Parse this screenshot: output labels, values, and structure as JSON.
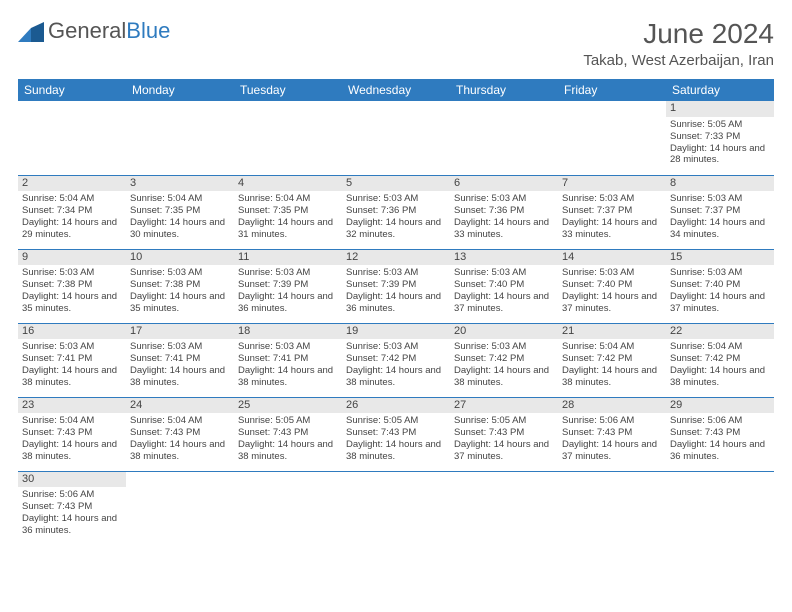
{
  "logo": {
    "text1": "General",
    "text2": "Blue"
  },
  "title": "June 2024",
  "location": "Takab, West Azerbaijan, Iran",
  "colors": {
    "header_bg": "#2f7bbf",
    "header_text": "#ffffff",
    "daynum_bg": "#e8e8e8",
    "border": "#2f7bbf"
  },
  "day_headers": [
    "Sunday",
    "Monday",
    "Tuesday",
    "Wednesday",
    "Thursday",
    "Friday",
    "Saturday"
  ],
  "weeks": [
    [
      null,
      null,
      null,
      null,
      null,
      null,
      {
        "n": "1",
        "sr": "Sunrise: 5:05 AM",
        "ss": "Sunset: 7:33 PM",
        "dl": "Daylight: 14 hours and 28 minutes."
      }
    ],
    [
      {
        "n": "2",
        "sr": "Sunrise: 5:04 AM",
        "ss": "Sunset: 7:34 PM",
        "dl": "Daylight: 14 hours and 29 minutes."
      },
      {
        "n": "3",
        "sr": "Sunrise: 5:04 AM",
        "ss": "Sunset: 7:35 PM",
        "dl": "Daylight: 14 hours and 30 minutes."
      },
      {
        "n": "4",
        "sr": "Sunrise: 5:04 AM",
        "ss": "Sunset: 7:35 PM",
        "dl": "Daylight: 14 hours and 31 minutes."
      },
      {
        "n": "5",
        "sr": "Sunrise: 5:03 AM",
        "ss": "Sunset: 7:36 PM",
        "dl": "Daylight: 14 hours and 32 minutes."
      },
      {
        "n": "6",
        "sr": "Sunrise: 5:03 AM",
        "ss": "Sunset: 7:36 PM",
        "dl": "Daylight: 14 hours and 33 minutes."
      },
      {
        "n": "7",
        "sr": "Sunrise: 5:03 AM",
        "ss": "Sunset: 7:37 PM",
        "dl": "Daylight: 14 hours and 33 minutes."
      },
      {
        "n": "8",
        "sr": "Sunrise: 5:03 AM",
        "ss": "Sunset: 7:37 PM",
        "dl": "Daylight: 14 hours and 34 minutes."
      }
    ],
    [
      {
        "n": "9",
        "sr": "Sunrise: 5:03 AM",
        "ss": "Sunset: 7:38 PM",
        "dl": "Daylight: 14 hours and 35 minutes."
      },
      {
        "n": "10",
        "sr": "Sunrise: 5:03 AM",
        "ss": "Sunset: 7:38 PM",
        "dl": "Daylight: 14 hours and 35 minutes."
      },
      {
        "n": "11",
        "sr": "Sunrise: 5:03 AM",
        "ss": "Sunset: 7:39 PM",
        "dl": "Daylight: 14 hours and 36 minutes."
      },
      {
        "n": "12",
        "sr": "Sunrise: 5:03 AM",
        "ss": "Sunset: 7:39 PM",
        "dl": "Daylight: 14 hours and 36 minutes."
      },
      {
        "n": "13",
        "sr": "Sunrise: 5:03 AM",
        "ss": "Sunset: 7:40 PM",
        "dl": "Daylight: 14 hours and 37 minutes."
      },
      {
        "n": "14",
        "sr": "Sunrise: 5:03 AM",
        "ss": "Sunset: 7:40 PM",
        "dl": "Daylight: 14 hours and 37 minutes."
      },
      {
        "n": "15",
        "sr": "Sunrise: 5:03 AM",
        "ss": "Sunset: 7:40 PM",
        "dl": "Daylight: 14 hours and 37 minutes."
      }
    ],
    [
      {
        "n": "16",
        "sr": "Sunrise: 5:03 AM",
        "ss": "Sunset: 7:41 PM",
        "dl": "Daylight: 14 hours and 38 minutes."
      },
      {
        "n": "17",
        "sr": "Sunrise: 5:03 AM",
        "ss": "Sunset: 7:41 PM",
        "dl": "Daylight: 14 hours and 38 minutes."
      },
      {
        "n": "18",
        "sr": "Sunrise: 5:03 AM",
        "ss": "Sunset: 7:41 PM",
        "dl": "Daylight: 14 hours and 38 minutes."
      },
      {
        "n": "19",
        "sr": "Sunrise: 5:03 AM",
        "ss": "Sunset: 7:42 PM",
        "dl": "Daylight: 14 hours and 38 minutes."
      },
      {
        "n": "20",
        "sr": "Sunrise: 5:03 AM",
        "ss": "Sunset: 7:42 PM",
        "dl": "Daylight: 14 hours and 38 minutes."
      },
      {
        "n": "21",
        "sr": "Sunrise: 5:04 AM",
        "ss": "Sunset: 7:42 PM",
        "dl": "Daylight: 14 hours and 38 minutes."
      },
      {
        "n": "22",
        "sr": "Sunrise: 5:04 AM",
        "ss": "Sunset: 7:42 PM",
        "dl": "Daylight: 14 hours and 38 minutes."
      }
    ],
    [
      {
        "n": "23",
        "sr": "Sunrise: 5:04 AM",
        "ss": "Sunset: 7:43 PM",
        "dl": "Daylight: 14 hours and 38 minutes."
      },
      {
        "n": "24",
        "sr": "Sunrise: 5:04 AM",
        "ss": "Sunset: 7:43 PM",
        "dl": "Daylight: 14 hours and 38 minutes."
      },
      {
        "n": "25",
        "sr": "Sunrise: 5:05 AM",
        "ss": "Sunset: 7:43 PM",
        "dl": "Daylight: 14 hours and 38 minutes."
      },
      {
        "n": "26",
        "sr": "Sunrise: 5:05 AM",
        "ss": "Sunset: 7:43 PM",
        "dl": "Daylight: 14 hours and 38 minutes."
      },
      {
        "n": "27",
        "sr": "Sunrise: 5:05 AM",
        "ss": "Sunset: 7:43 PM",
        "dl": "Daylight: 14 hours and 37 minutes."
      },
      {
        "n": "28",
        "sr": "Sunrise: 5:06 AM",
        "ss": "Sunset: 7:43 PM",
        "dl": "Daylight: 14 hours and 37 minutes."
      },
      {
        "n": "29",
        "sr": "Sunrise: 5:06 AM",
        "ss": "Sunset: 7:43 PM",
        "dl": "Daylight: 14 hours and 36 minutes."
      }
    ],
    [
      {
        "n": "30",
        "sr": "Sunrise: 5:06 AM",
        "ss": "Sunset: 7:43 PM",
        "dl": "Daylight: 14 hours and 36 minutes."
      },
      null,
      null,
      null,
      null,
      null,
      null
    ]
  ]
}
